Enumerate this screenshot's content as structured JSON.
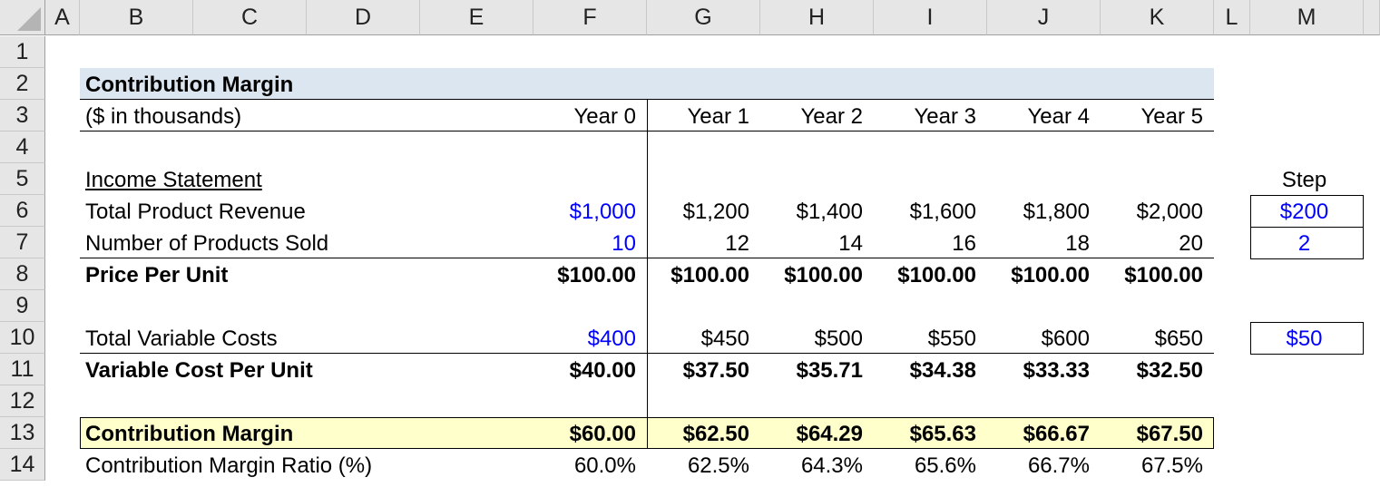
{
  "columns": [
    "A",
    "B",
    "C",
    "D",
    "E",
    "F",
    "G",
    "H",
    "I",
    "J",
    "K",
    "L",
    "M"
  ],
  "rows": [
    "1",
    "2",
    "3",
    "4",
    "5",
    "6",
    "7",
    "8",
    "9",
    "10",
    "11",
    "12",
    "13",
    "14"
  ],
  "title": "Contribution Margin",
  "units": "($ in thousands)",
  "years": [
    "Year 0",
    "Year 1",
    "Year 2",
    "Year 3",
    "Year 4",
    "Year 5"
  ],
  "section": "Income Statement",
  "step_label": "Step",
  "lines": [
    {
      "row": 6,
      "label": "Total Product Revenue",
      "values": [
        "$1,000",
        "$1,200",
        "$1,400",
        "$1,600",
        "$1,800",
        "$2,000"
      ],
      "step": "$200"
    },
    {
      "row": 7,
      "label": "Number of Products Sold",
      "values": [
        "10",
        "12",
        "14",
        "16",
        "18",
        "20"
      ],
      "step": "2"
    },
    {
      "row": 8,
      "label": "Price Per Unit",
      "bold": true,
      "values": [
        "$100.00",
        "$100.00",
        "$100.00",
        "$100.00",
        "$100.00",
        "$100.00"
      ]
    },
    {
      "row": 10,
      "label": "Total Variable Costs",
      "values": [
        "$400",
        "$450",
        "$500",
        "$550",
        "$600",
        "$650"
      ],
      "step": "$50"
    },
    {
      "row": 11,
      "label": "Variable Cost Per Unit",
      "bold": true,
      "values": [
        "$40.00",
        "$37.50",
        "$35.71",
        "$34.38",
        "$33.33",
        "$32.50"
      ]
    },
    {
      "row": 13,
      "label": "Contribution Margin",
      "bold": true,
      "values": [
        "$60.00",
        "$62.50",
        "$64.29",
        "$65.63",
        "$66.67",
        "$67.50"
      ]
    },
    {
      "row": 14,
      "label": "Contribution Margin Ratio (%)",
      "values": [
        "60.0%",
        "62.5%",
        "64.3%",
        "65.6%",
        "66.7%",
        "67.5%"
      ]
    }
  ],
  "colors": {
    "input": "#0000ff",
    "title_fill": "#dce6f1",
    "highlight_fill": "#ffffcc",
    "header_bg": "#e6e6e6"
  }
}
